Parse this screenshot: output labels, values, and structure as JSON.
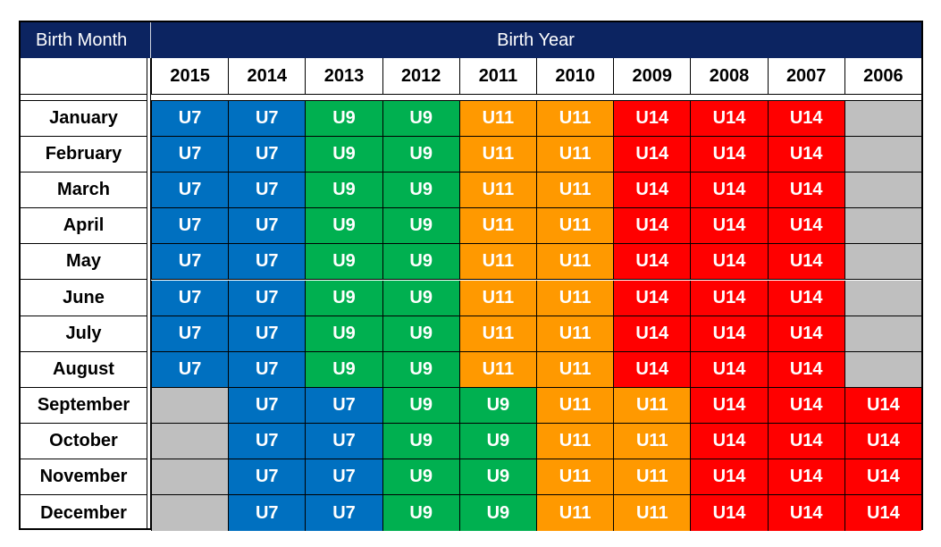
{
  "header": {
    "birth_month_label": "Birth Month",
    "birth_year_label": "Birth Year"
  },
  "years": [
    "2015",
    "2014",
    "2013",
    "2012",
    "2011",
    "2010",
    "2009",
    "2008",
    "2007",
    "2006"
  ],
  "colors": {
    "U7": "#0070c0",
    "U9": "#00b050",
    "U11": "#ff9900",
    "U14": "#ff0000",
    "none": "#bfbfbf"
  },
  "rows": [
    {
      "month": "January",
      "cells": [
        "U7",
        "U7",
        "U9",
        "U9",
        "U11",
        "U11",
        "U14",
        "U14",
        "U14",
        ""
      ]
    },
    {
      "month": "February",
      "cells": [
        "U7",
        "U7",
        "U9",
        "U9",
        "U11",
        "U11",
        "U14",
        "U14",
        "U14",
        ""
      ]
    },
    {
      "month": "March",
      "cells": [
        "U7",
        "U7",
        "U9",
        "U9",
        "U11",
        "U11",
        "U14",
        "U14",
        "U14",
        ""
      ]
    },
    {
      "month": "April",
      "cells": [
        "U7",
        "U7",
        "U9",
        "U9",
        "U11",
        "U11",
        "U14",
        "U14",
        "U14",
        ""
      ]
    },
    {
      "month": "May",
      "cells": [
        "U7",
        "U7",
        "U9",
        "U9",
        "U11",
        "U11",
        "U14",
        "U14",
        "U14",
        ""
      ]
    },
    {
      "month": "June",
      "cells": [
        "U7",
        "U7",
        "U9",
        "U9",
        "U11",
        "U11",
        "U14",
        "U14",
        "U14",
        ""
      ]
    },
    {
      "month": "July",
      "cells": [
        "U7",
        "U7",
        "U9",
        "U9",
        "U11",
        "U11",
        "U14",
        "U14",
        "U14",
        ""
      ]
    },
    {
      "month": "August",
      "cells": [
        "U7",
        "U7",
        "U9",
        "U9",
        "U11",
        "U11",
        "U14",
        "U14",
        "U14",
        ""
      ]
    },
    {
      "month": "September",
      "cells": [
        "",
        "U7",
        "U7",
        "U9",
        "U9",
        "U11",
        "U11",
        "U14",
        "U14",
        "U14"
      ]
    },
    {
      "month": "October",
      "cells": [
        "",
        "U7",
        "U7",
        "U9",
        "U9",
        "U11",
        "U11",
        "U14",
        "U14",
        "U14"
      ]
    },
    {
      "month": "November",
      "cells": [
        "",
        "U7",
        "U7",
        "U9",
        "U9",
        "U11",
        "U11",
        "U14",
        "U14",
        "U14"
      ]
    },
    {
      "month": "December",
      "cells": [
        "",
        "U7",
        "U7",
        "U9",
        "U9",
        "U11",
        "U11",
        "U14",
        "U14",
        "U14"
      ]
    }
  ]
}
